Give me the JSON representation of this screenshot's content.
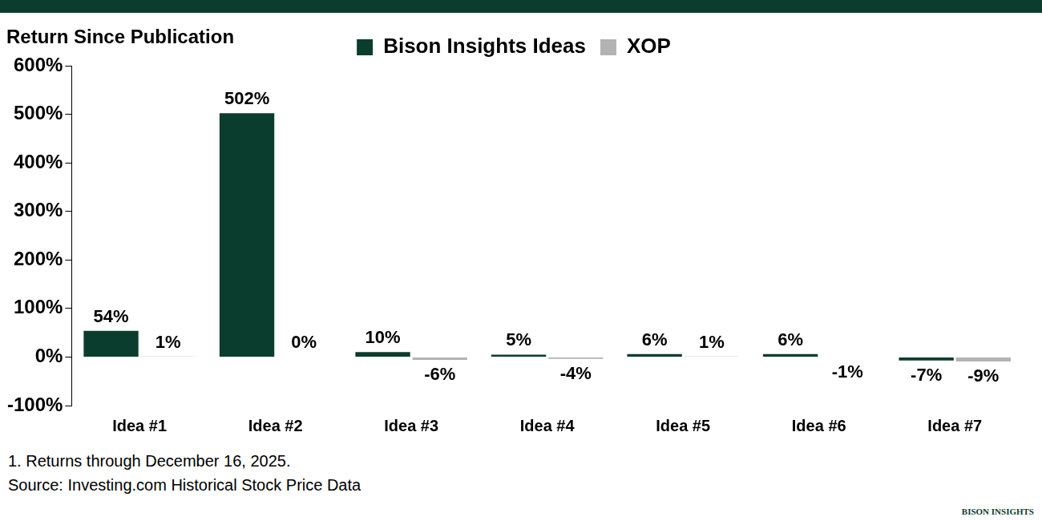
{
  "chart_data": {
    "type": "bar",
    "title": "Return Since Publication",
    "categories": [
      "Idea #1",
      "Idea #2",
      "Idea #3",
      "Idea #4",
      "Idea #5",
      "Idea #6",
      "Idea #7"
    ],
    "series": [
      {
        "name": "Bison Insights Ideas",
        "color": "#0b3d2e",
        "values": [
          54,
          502,
          10,
          5,
          6,
          6,
          -7
        ],
        "value_labels": [
          "54%",
          "502%",
          "10%",
          "5%",
          "6%",
          "6%",
          "-7%"
        ]
      },
      {
        "name": "XOP",
        "color": "#b3b3b3",
        "values": [
          1,
          0,
          -6,
          -4,
          1,
          -1,
          -9
        ],
        "value_labels": [
          "1%",
          "0%",
          "-6%",
          "-4%",
          "1%",
          "-1%",
          "-9%"
        ]
      }
    ],
    "ylim": [
      -100,
      600
    ],
    "yticks": [
      {
        "value": -100,
        "label": "-100%"
      },
      {
        "value": 0,
        "label": "0%"
      },
      {
        "value": 100,
        "label": "100%"
      },
      {
        "value": 200,
        "label": "200%"
      },
      {
        "value": 300,
        "label": "300%"
      },
      {
        "value": 400,
        "label": "400%"
      },
      {
        "value": 500,
        "label": "500%"
      },
      {
        "value": 600,
        "label": "600%"
      }
    ],
    "grid": false,
    "legend": "top",
    "data_labels": true
  },
  "footnotes": [
    "1. Returns through December 16, 2025.",
    "Source: Investing.com Historical Stock Price Data"
  ],
  "logo_text": "BISON INSIGHTS"
}
